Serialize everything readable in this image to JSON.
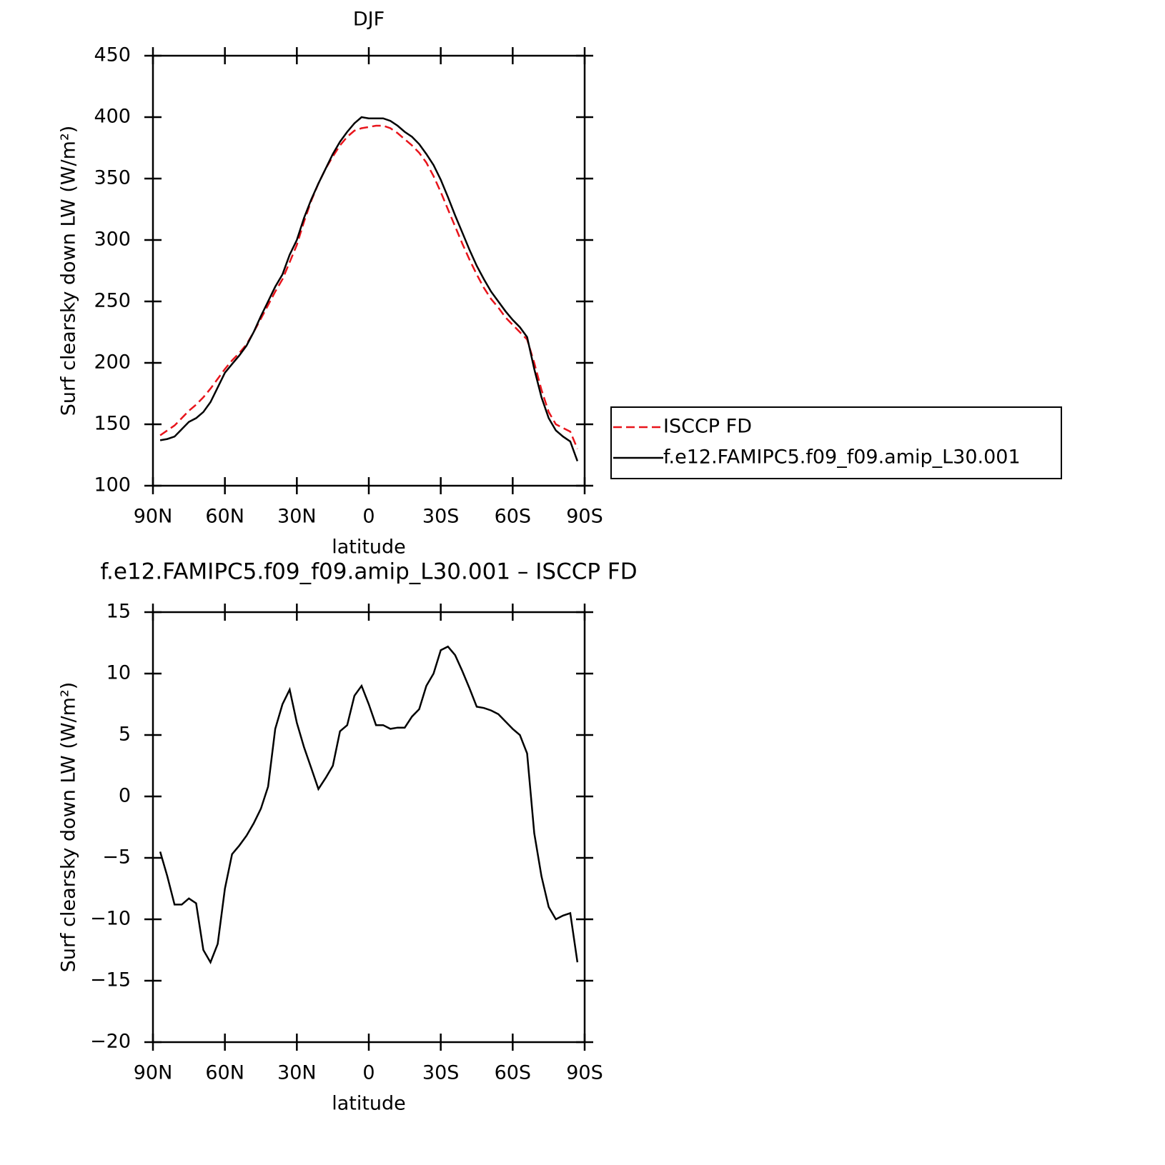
{
  "chart_data": [
    {
      "type": "line",
      "title": "DJF",
      "x_label": "latitude",
      "y_label": "Surf clearsky down LW (W/m²)",
      "xlim": [
        90,
        -90
      ],
      "ylim": [
        100,
        450
      ],
      "xticks": [
        {
          "value": 90,
          "label": "90N"
        },
        {
          "value": 60,
          "label": "60N"
        },
        {
          "value": 30,
          "label": "30N"
        },
        0,
        {
          "value": -30,
          "label": "30S"
        },
        {
          "value": -60,
          "label": "60S"
        },
        {
          "value": -90,
          "label": "90S"
        }
      ],
      "yticks": [
        100,
        150,
        200,
        250,
        300,
        350,
        400,
        450
      ],
      "legend": "outside right",
      "x": [
        87,
        84,
        81,
        78,
        75,
        72,
        69,
        66,
        63,
        60,
        57,
        54,
        51,
        48,
        45,
        42,
        39,
        36,
        33,
        30,
        27,
        24,
        21,
        18,
        15,
        12,
        9,
        6,
        3,
        0,
        -3,
        -6,
        -9,
        -12,
        -15,
        -18,
        -21,
        -24,
        -27,
        -30,
        -33,
        -36,
        -39,
        -42,
        -45,
        -48,
        -51,
        -54,
        -57,
        -60,
        -63,
        -66,
        -69,
        -72,
        -75,
        -78,
        -81,
        -84,
        -87
      ],
      "series": [
        {
          "name": "ISCCP FD",
          "color": "#e8141b",
          "style": "dashed",
          "values": [
            141,
            145,
            149,
            155,
            161,
            166,
            172,
            179,
            187,
            195,
            202,
            208,
            215,
            225,
            236,
            247,
            258,
            268,
            282,
            296,
            315,
            332,
            346,
            358,
            368,
            377,
            384,
            389,
            391,
            392,
            393,
            393,
            391,
            387,
            382,
            377,
            371,
            363,
            352,
            339,
            325,
            311,
            297,
            284,
            272,
            261,
            252,
            245,
            237,
            231,
            225,
            219,
            200,
            178,
            160,
            150,
            147,
            144,
            130
          ]
        },
        {
          "name": "f.e12.FAMIPC5.f09_f09.amip_L30.001",
          "color": "#000000",
          "style": "solid",
          "values": [
            137,
            138,
            140,
            146,
            152,
            155,
            160,
            168,
            180,
            192,
            199,
            206,
            214,
            225,
            238,
            250,
            262,
            272,
            288,
            300,
            318,
            333,
            346,
            358,
            370,
            380,
            388,
            395,
            400,
            399,
            399,
            399,
            397,
            393,
            388,
            384,
            378,
            370,
            361,
            349,
            335,
            320,
            306,
            292,
            279,
            268,
            258,
            250,
            242,
            235,
            229,
            221,
            195,
            172,
            155,
            145,
            140,
            136,
            120
          ]
        }
      ]
    },
    {
      "type": "line",
      "title": "f.e12.FAMIPC5.f09_f09.amip_L30.001 – ISCCP FD",
      "x_label": "latitude",
      "y_label": "Surf clearsky down LW (W/m²)",
      "xlim": [
        90,
        -90
      ],
      "ylim": [
        -20,
        15
      ],
      "xticks": [
        {
          "value": 90,
          "label": "90N"
        },
        {
          "value": 60,
          "label": "60N"
        },
        {
          "value": 30,
          "label": "30N"
        },
        0,
        {
          "value": -30,
          "label": "30S"
        },
        {
          "value": -60,
          "label": "60S"
        },
        {
          "value": -90,
          "label": "90S"
        }
      ],
      "yticks": [
        {
          "value": -20,
          "label": "−20"
        },
        {
          "value": -15,
          "label": "−15"
        },
        {
          "value": -10,
          "label": "−10"
        },
        {
          "value": -5,
          "label": "−5"
        },
        0,
        5,
        10,
        15
      ],
      "x": [
        87,
        84,
        81,
        78,
        75,
        72,
        69,
        66,
        63,
        60,
        57,
        54,
        51,
        48,
        45,
        42,
        39,
        36,
        33,
        30,
        27,
        24,
        21,
        18,
        15,
        12,
        9,
        6,
        3,
        0,
        -3,
        -6,
        -9,
        -12,
        -15,
        -18,
        -21,
        -24,
        -27,
        -30,
        -33,
        -36,
        -39,
        -42,
        -45,
        -48,
        -51,
        -54,
        -57,
        -60,
        -63,
        -66,
        -69,
        -72,
        -75,
        -78,
        -81,
        -84,
        -87
      ],
      "series": [
        {
          "color": "#000000",
          "style": "solid",
          "values": [
            -4.5,
            -6.5,
            -8.8,
            -8.8,
            -8.3,
            -8.7,
            -12.5,
            -13.5,
            -12,
            -7.5,
            -4.7,
            -4.0,
            -3.2,
            -2.2,
            -1.0,
            0.8,
            5.5,
            7.5,
            8.7,
            6.0,
            4.0,
            2.3,
            0.6,
            1.5,
            2.5,
            5.3,
            5.8,
            8.2,
            9.0,
            7.5,
            5.8,
            5.8,
            5.5,
            5.6,
            5.6,
            6.5,
            7.1,
            9.0,
            10.0,
            11.9,
            12.2,
            11.5,
            10.2,
            8.8,
            7.3,
            7.2,
            7.0,
            6.7,
            6.1,
            5.5,
            5.0,
            3.5,
            -3.0,
            -6.5,
            -9.0,
            -10.0,
            -9.7,
            -9.5,
            -13.5
          ]
        }
      ]
    }
  ]
}
